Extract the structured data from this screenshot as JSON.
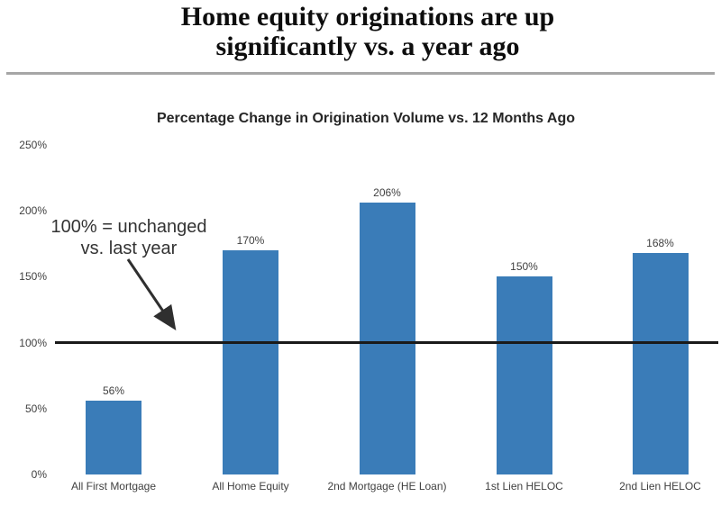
{
  "header": {
    "title_line1": "Home equity originations are up",
    "title_line2": "significantly vs. a year ago"
  },
  "colors": {
    "bar_fill": "#3A7CB8",
    "reference_line": "#1A1A1A",
    "divider": "#A6A6A6",
    "label_text": "#404040",
    "annotation_text": "#333333"
  },
  "chart_data": {
    "type": "bar",
    "title": "Percentage Change in Origination Volume vs. 12 Months Ago",
    "categories": [
      "All First Mortgage",
      "All Home Equity",
      "2nd Mortgage (HE Loan)",
      "1st Lien HELOC",
      "2nd Lien HELOC"
    ],
    "values": [
      56,
      170,
      206,
      150,
      168
    ],
    "data_labels": [
      "56%",
      "170%",
      "206%",
      "150%",
      "168%"
    ],
    "xlabel": "",
    "ylabel": "",
    "ylim": [
      0,
      250
    ],
    "y_tick_labels": [
      "0%",
      "50%",
      "100%",
      "150%",
      "200%",
      "250%"
    ],
    "y_tick_values": [
      0,
      50,
      100,
      150,
      200,
      250
    ],
    "grid": false,
    "legend": false,
    "reference_line": {
      "value": 100,
      "label": "100%"
    },
    "annotation": "100% = unchanged vs. last year",
    "annotation_lines": [
      "100% = unchanged",
      "vs. last year"
    ]
  }
}
